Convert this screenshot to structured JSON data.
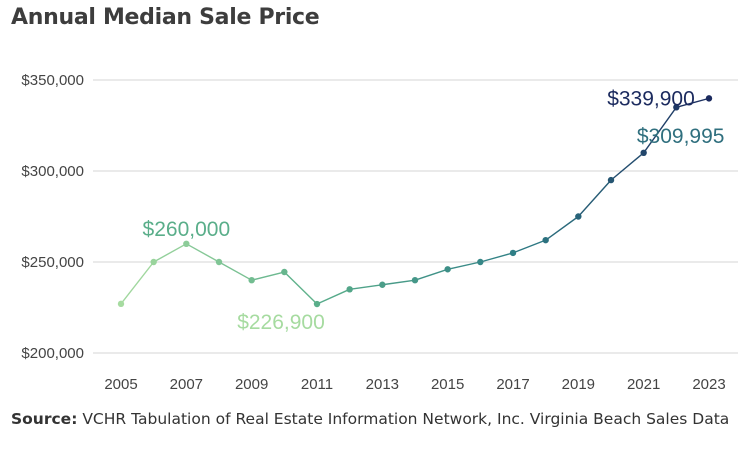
{
  "title": "Annual Median Sale Price",
  "source": {
    "label": "Source:",
    "text": "VCHR Tabulation of Real Estate Information Network, Inc. Virginia Beach Sales Data"
  },
  "chart_data": {
    "type": "line",
    "title": "Annual Median Sale Price",
    "xlabel": "",
    "ylabel": "",
    "x": [
      2005,
      2006,
      2007,
      2008,
      2009,
      2010,
      2011,
      2012,
      2013,
      2014,
      2015,
      2016,
      2017,
      2018,
      2019,
      2020,
      2021,
      2022,
      2023
    ],
    "values": [
      227000,
      250000,
      260000,
      250000,
      240000,
      244500,
      226900,
      235000,
      237500,
      240000,
      246000,
      250000,
      255000,
      262000,
      275000,
      295000,
      309995,
      335000,
      339900
    ],
    "ylim": [
      200000,
      350000
    ],
    "yticks": [
      200000,
      250000,
      300000,
      350000
    ],
    "ytick_labels": [
      "$200,000",
      "$250,000",
      "$300,000",
      "$350,000"
    ],
    "xticks": [
      2005,
      2007,
      2009,
      2011,
      2013,
      2015,
      2017,
      2019,
      2021,
      2023
    ],
    "xtick_labels": [
      "2005",
      "2007",
      "2009",
      "2011",
      "2013",
      "2015",
      "2017",
      "2019",
      "2021",
      "2023"
    ],
    "grid": true,
    "gradient_colors": [
      "#a6dba0",
      "#5aae8a",
      "#2f7f86",
      "#1b2a5e"
    ],
    "annotations": [
      {
        "x": 2007,
        "y": 260000,
        "text": "$260,000",
        "color": "#5aae8a"
      },
      {
        "x": 2011,
        "y": 226900,
        "text": "$226,900",
        "color": "#a6dba0"
      },
      {
        "x": 2021,
        "y": 309995,
        "text": "$309,995",
        "color": "#2f6f7e"
      },
      {
        "x": 2023,
        "y": 339900,
        "text": "$339,900",
        "color": "#1b2a5e"
      }
    ]
  }
}
